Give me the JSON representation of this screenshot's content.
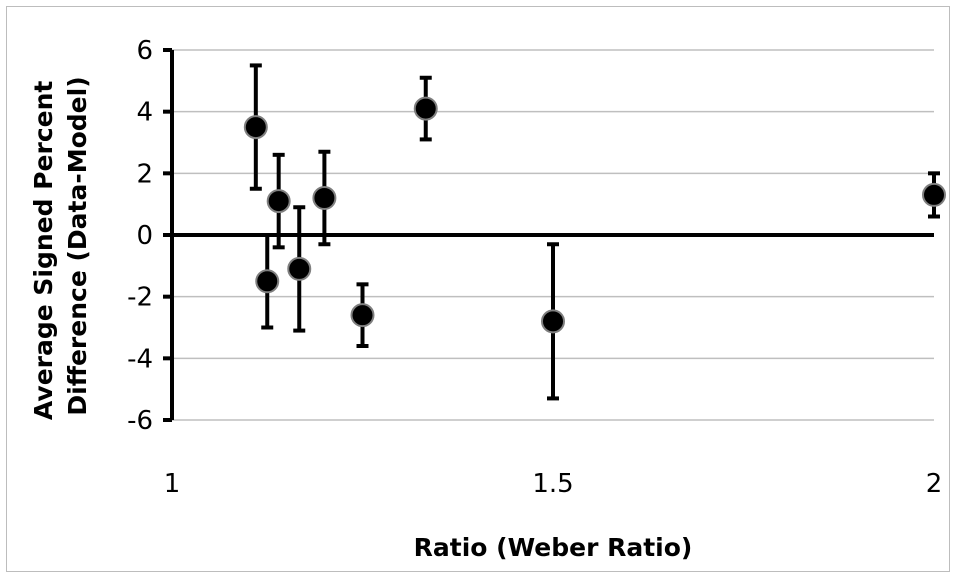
{
  "chart_data": {
    "type": "scatter",
    "title": "",
    "xlabel": "Ratio (Weber Ratio)",
    "ylabel_lines": [
      "Average Signed Percent",
      "Difference (Data-Model)"
    ],
    "xlim": [
      1,
      2
    ],
    "ylim": [
      -6,
      6
    ],
    "x_ticks": [
      1,
      1.5,
      2
    ],
    "x_tick_labels": [
      "1",
      "1.5",
      "2"
    ],
    "y_ticks": [
      -6,
      -4,
      -2,
      0,
      2,
      4,
      6
    ],
    "y_tick_labels": [
      "-6",
      "-4",
      "-2",
      "0",
      "2",
      "4",
      "6"
    ],
    "grid": "horizontal",
    "legend": "none",
    "points": [
      {
        "x": 1.11,
        "y": 3.5,
        "err_low": 1.5,
        "err_high": 5.5
      },
      {
        "x": 1.125,
        "y": -1.5,
        "err_low": -3.0,
        "err_high": 0.0
      },
      {
        "x": 1.14,
        "y": 1.1,
        "err_low": -0.4,
        "err_high": 2.6
      },
      {
        "x": 1.167,
        "y": -1.1,
        "err_low": -3.1,
        "err_high": 0.9
      },
      {
        "x": 1.2,
        "y": 1.2,
        "err_low": -0.3,
        "err_high": 2.7
      },
      {
        "x": 1.25,
        "y": -2.6,
        "err_low": -3.6,
        "err_high": -1.6
      },
      {
        "x": 1.333,
        "y": 4.1,
        "err_low": 3.1,
        "err_high": 5.1
      },
      {
        "x": 1.5,
        "y": -2.8,
        "err_low": -5.3,
        "err_high": -0.3
      },
      {
        "x": 2.0,
        "y": 1.3,
        "err_low": 0.6,
        "err_high": 2.0
      }
    ],
    "colors": {
      "marker": "#000000",
      "marker_edge": "#7f7f7f",
      "grid": "#bfbfbf",
      "axis": "#000000"
    }
  }
}
